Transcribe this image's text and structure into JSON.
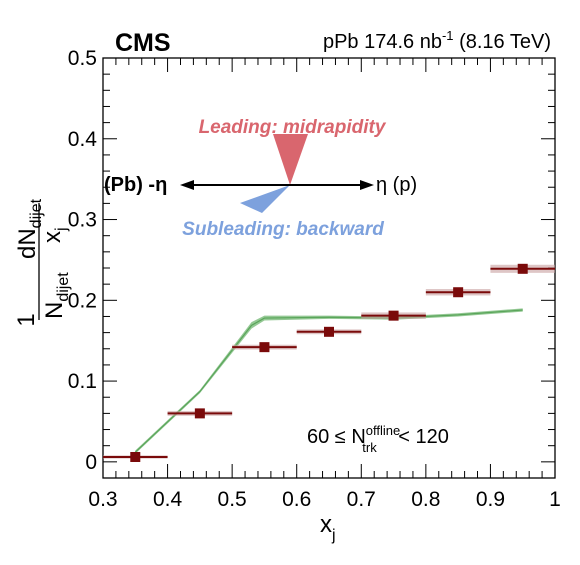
{
  "header": {
    "experiment": "CMS",
    "lumi": "pPb 174.6 nb",
    "lumi_exp": "-1",
    "energy": "(8.16 TeV)"
  },
  "diagram": {
    "leading_label": "Leading: midrapidity",
    "subleading_label": "Subleading: backward",
    "left_label": "(Pb) -η",
    "right_label": "η (p)"
  },
  "selection": {
    "prefix": "60 ≤ N",
    "sup": "offline",
    "sub": "trk",
    "suffix": " < 120"
  },
  "chart_data": {
    "type": "scatter",
    "xlabel": "x",
    "xlabel_sub": "j",
    "ylabel_parts": {
      "one": "1",
      "n_big": "N",
      "n_sub": "dijet",
      "dn": "dN",
      "dn_sub": "dijet",
      "dx": "x",
      "dx_sub": "j"
    },
    "xlim": [
      0.3,
      1.0
    ],
    "ylim": [
      -0.02,
      0.5
    ],
    "xticks": [
      "0.3",
      "0.4",
      "0.5",
      "0.6",
      "0.7",
      "0.8",
      "0.9",
      "1"
    ],
    "yticks": [
      "0",
      "0.1",
      "0.2",
      "0.3",
      "0.4",
      "0.5"
    ],
    "series": [
      {
        "kind": "data",
        "color": "#7a0a0a",
        "x": [
          0.35,
          0.45,
          0.55,
          0.65,
          0.75,
          0.85,
          0.95
        ],
        "y": [
          0.006,
          0.06,
          0.142,
          0.161,
          0.181,
          0.21,
          0.239
        ],
        "xerr": 0.05,
        "syst": [
          0.002,
          0.003,
          0.003,
          0.003,
          0.004,
          0.004,
          0.005
        ]
      },
      {
        "kind": "model",
        "color": "#82bf82",
        "x": [
          0.35,
          0.45,
          0.53,
          0.55,
          0.65,
          0.75,
          0.85,
          0.95
        ],
        "y": [
          0.012,
          0.087,
          0.169,
          0.178,
          0.179,
          0.178,
          0.182,
          0.188
        ],
        "band": [
          0.002,
          0.002,
          0.004,
          0.003,
          0.002,
          0.002,
          0.002,
          0.002
        ]
      }
    ]
  }
}
